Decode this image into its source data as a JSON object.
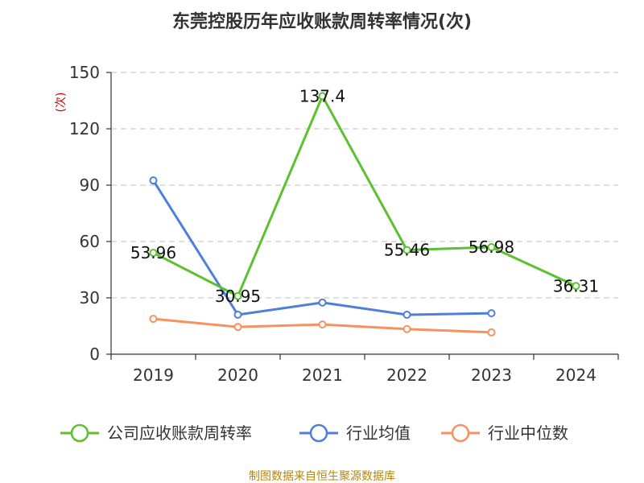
{
  "chart_data": {
    "type": "line",
    "title": "东莞控股历年应收账款周转率情况(次)",
    "ylabel": "(次)",
    "xlabel": "",
    "categories": [
      "2019",
      "2020",
      "2021",
      "2022",
      "2023",
      "2024"
    ],
    "ylim": [
      0,
      150
    ],
    "yticks": [
      0,
      30,
      60,
      90,
      120,
      150
    ],
    "grid": true,
    "series": [
      {
        "name": "公司应收账款周转率",
        "color": "#5bc12e",
        "values": [
          53.96,
          30.95,
          137.4,
          55.46,
          56.98,
          36.31
        ],
        "labels": [
          "53.96",
          "30.95",
          "137.4",
          "55.46",
          "56.98",
          "36.31"
        ]
      },
      {
        "name": "行业均值",
        "color": "#4e7fdb",
        "values": [
          92.5,
          21.0,
          27.5,
          21.0,
          21.8,
          null
        ]
      },
      {
        "name": "行业中位数",
        "color": "#f5925e",
        "values": [
          18.8,
          14.5,
          15.8,
          13.4,
          11.6,
          null
        ]
      }
    ],
    "legend_position": "bottom",
    "source": "制图数据来自恒生聚源数据库"
  }
}
